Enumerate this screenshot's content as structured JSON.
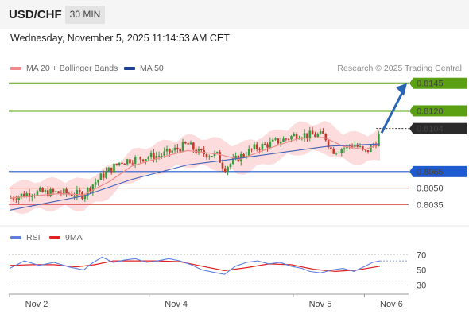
{
  "header": {
    "pair": "USD/CHF",
    "timeframe": "30 MIN",
    "datetime": "Wednesday, November 5, 2025 11:14:53 AM CET"
  },
  "legend": {
    "ma20_label": "MA 20 + Bollinger Bands",
    "ma50_label": "MA 50",
    "credit": "Research © 2025 Trading Central"
  },
  "rsi_legend": {
    "rsi_label": "RSI",
    "ma_label": "9MA"
  },
  "colors": {
    "bull": "#3a9a3f",
    "bear": "#c23a2e",
    "resistance": "#5aa012",
    "support": "#1e5bd0",
    "pivot_red": "#e06a6a",
    "current": "#2a2a2a",
    "arrow": "#2a64b4",
    "ma20": "#f08a8a",
    "ma50": "#4262b8",
    "band": "#fbd3d3",
    "rsi": "#5e7fe0",
    "rsi_ma": "#e02020"
  },
  "chart_data": {
    "type": "candlestick",
    "instrument": "USD/CHF",
    "interval": "30 MIN",
    "ylim": [
      0.8026,
      0.8152
    ],
    "levels": [
      {
        "label": "0.8145",
        "value": 0.8145,
        "kind": "resistance"
      },
      {
        "label": "0.8120",
        "value": 0.812,
        "kind": "resistance"
      },
      {
        "label": "0.8104",
        "value": 0.8104,
        "kind": "current"
      },
      {
        "label": "0.8065",
        "value": 0.8065,
        "kind": "support"
      },
      {
        "label": "0.8050",
        "value": 0.805,
        "kind": "pivot"
      },
      {
        "label": "0.8035",
        "value": 0.8035,
        "kind": "pivot"
      }
    ],
    "x_labels": [
      "Nov 2",
      "Nov 4",
      "Nov 5",
      "Nov 6"
    ],
    "x_label_positions": [
      0,
      0.377,
      0.766,
      0.958
    ],
    "price_path": [
      [
        0,
        0.8041
      ],
      [
        0.06,
        0.8046
      ],
      [
        0.13,
        0.8046
      ],
      [
        0.2,
        0.8044
      ],
      [
        0.22,
        0.8052
      ],
      [
        0.26,
        0.8064
      ],
      [
        0.3,
        0.8074
      ],
      [
        0.33,
        0.8076
      ],
      [
        0.37,
        0.8078
      ],
      [
        0.41,
        0.808
      ],
      [
        0.45,
        0.8085
      ],
      [
        0.48,
        0.809
      ],
      [
        0.51,
        0.8082
      ],
      [
        0.56,
        0.808
      ],
      [
        0.58,
        0.8068
      ],
      [
        0.62,
        0.8078
      ],
      [
        0.66,
        0.8086
      ],
      [
        0.7,
        0.809
      ],
      [
        0.74,
        0.8094
      ],
      [
        0.78,
        0.8099
      ],
      [
        0.81,
        0.8098
      ],
      [
        0.85,
        0.8098
      ],
      [
        0.87,
        0.8084
      ],
      [
        0.9,
        0.8086
      ],
      [
        0.93,
        0.809
      ],
      [
        0.96,
        0.8082
      ],
      [
        0.99,
        0.8092
      ],
      [
        1.0,
        0.81
      ]
    ],
    "ma20_path": [
      [
        0,
        0.8041
      ],
      [
        0.13,
        0.8045
      ],
      [
        0.2,
        0.8044
      ],
      [
        0.27,
        0.8056
      ],
      [
        0.33,
        0.807
      ],
      [
        0.41,
        0.8078
      ],
      [
        0.48,
        0.8084
      ],
      [
        0.56,
        0.8081
      ],
      [
        0.62,
        0.8076
      ],
      [
        0.7,
        0.8086
      ],
      [
        0.78,
        0.8095
      ],
      [
        0.85,
        0.8096
      ],
      [
        0.9,
        0.8088
      ],
      [
        0.96,
        0.8085
      ],
      [
        1.0,
        0.809
      ]
    ],
    "ma50_path": [
      [
        0,
        0.803
      ],
      [
        0.2,
        0.8043
      ],
      [
        0.33,
        0.8058
      ],
      [
        0.48,
        0.8071
      ],
      [
        0.62,
        0.8077
      ],
      [
        0.75,
        0.8083
      ],
      [
        0.86,
        0.8088
      ],
      [
        1.0,
        0.809
      ]
    ],
    "band_width": 0.0012,
    "projection": {
      "from": 0.81,
      "to": 0.8145
    },
    "rsi": {
      "ylim": [
        20,
        80
      ],
      "levels": [
        70,
        50,
        30
      ],
      "series": [
        [
          0,
          52
        ],
        [
          0.04,
          62
        ],
        [
          0.08,
          56
        ],
        [
          0.12,
          60
        ],
        [
          0.16,
          54
        ],
        [
          0.2,
          50
        ],
        [
          0.22,
          58
        ],
        [
          0.25,
          67
        ],
        [
          0.28,
          60
        ],
        [
          0.31,
          63
        ],
        [
          0.34,
          65
        ],
        [
          0.37,
          60
        ],
        [
          0.4,
          62
        ],
        [
          0.43,
          65
        ],
        [
          0.46,
          62
        ],
        [
          0.49,
          57
        ],
        [
          0.52,
          50
        ],
        [
          0.55,
          47
        ],
        [
          0.58,
          44
        ],
        [
          0.61,
          55
        ],
        [
          0.64,
          60
        ],
        [
          0.67,
          62
        ],
        [
          0.7,
          58
        ],
        [
          0.73,
          60
        ],
        [
          0.76,
          55
        ],
        [
          0.79,
          52
        ],
        [
          0.81,
          48
        ],
        [
          0.84,
          46
        ],
        [
          0.87,
          50
        ],
        [
          0.9,
          52
        ],
        [
          0.93,
          48
        ],
        [
          0.96,
          55
        ],
        [
          0.98,
          60
        ],
        [
          1.0,
          62
        ]
      ],
      "ma_series": [
        [
          0,
          56
        ],
        [
          0.06,
          57
        ],
        [
          0.12,
          57
        ],
        [
          0.18,
          54
        ],
        [
          0.23,
          57
        ],
        [
          0.28,
          62
        ],
        [
          0.34,
          62
        ],
        [
          0.4,
          62
        ],
        [
          0.46,
          61
        ],
        [
          0.52,
          55
        ],
        [
          0.58,
          49
        ],
        [
          0.64,
          53
        ],
        [
          0.7,
          58
        ],
        [
          0.76,
          57
        ],
        [
          0.82,
          51
        ],
        [
          0.88,
          48
        ],
        [
          0.94,
          50
        ],
        [
          1.0,
          55
        ]
      ]
    }
  }
}
